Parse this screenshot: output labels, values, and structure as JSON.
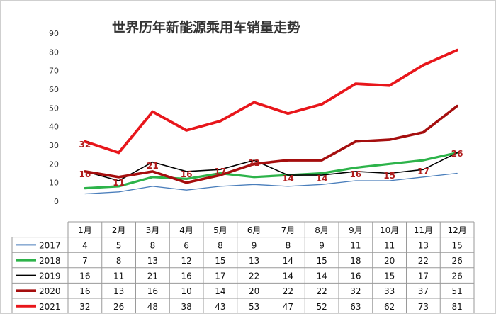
{
  "chart_data": {
    "type": "line",
    "title": "世界历年新能源乘用车销量走势",
    "xlabel": "",
    "ylabel": "",
    "ylim": [
      0,
      90
    ],
    "yticks": [
      0,
      10,
      20,
      30,
      40,
      50,
      60,
      70,
      80,
      90
    ],
    "grid": false,
    "legend": "table-left",
    "categories": [
      "1月",
      "2月",
      "3月",
      "4月",
      "5月",
      "6月",
      "7月",
      "8月",
      "9月",
      "10月",
      "11月",
      "12月"
    ],
    "series": [
      {
        "name": "2017",
        "color": "#4a7ebb",
        "values": [
          4,
          5,
          8,
          6,
          8,
          9,
          8,
          9,
          11,
          11,
          13,
          15
        ]
      },
      {
        "name": "2018",
        "color": "#2db34a",
        "values": [
          7,
          8,
          13,
          12,
          15,
          13,
          14,
          15,
          18,
          20,
          22,
          26
        ]
      },
      {
        "name": "2019",
        "color": "#000000",
        "values": [
          16,
          11,
          21,
          16,
          17,
          22,
          14,
          14,
          16,
          15,
          17,
          26
        ]
      },
      {
        "name": "2020",
        "color": "#a50e0e",
        "values": [
          16,
          13,
          16,
          10,
          14,
          20,
          22,
          22,
          32,
          33,
          37,
          51
        ]
      },
      {
        "name": "2021",
        "color": "#e8161b",
        "values": [
          32,
          26,
          48,
          38,
          43,
          53,
          47,
          52,
          63,
          62,
          73,
          81
        ]
      }
    ],
    "annotations": [
      {
        "category": "1月",
        "text": "32"
      },
      {
        "category": "1月",
        "text": "16"
      },
      {
        "category": "2月",
        "text": "11"
      },
      {
        "category": "3月",
        "text": "21"
      },
      {
        "category": "4月",
        "text": "16"
      },
      {
        "category": "5月",
        "text": "17"
      },
      {
        "category": "6月",
        "text": "22"
      },
      {
        "category": "7月",
        "text": "14"
      },
      {
        "category": "8月",
        "text": "14"
      },
      {
        "category": "9月",
        "text": "16"
      },
      {
        "category": "10月",
        "text": "15"
      },
      {
        "category": "11月",
        "text": "17"
      },
      {
        "category": "12月",
        "text": "26"
      }
    ]
  }
}
